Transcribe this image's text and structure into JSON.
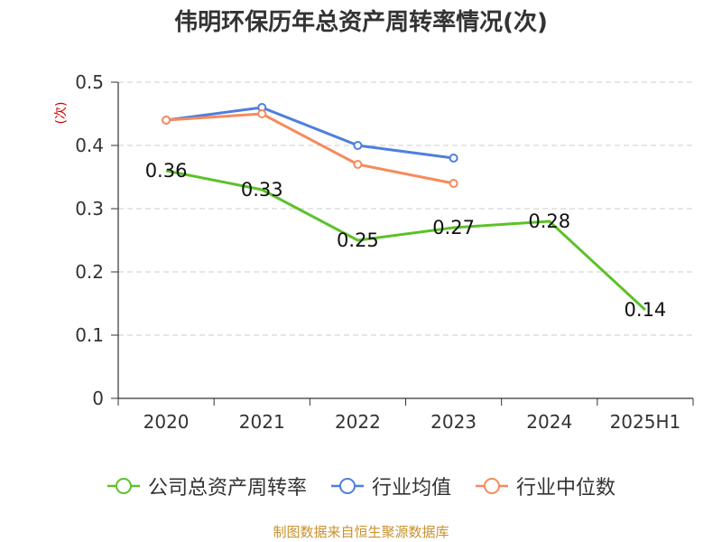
{
  "chart_data": {
    "type": "line",
    "title": "伟明环保历年总资产周转率情况(次)",
    "ylabel": "(次)",
    "categories": [
      "2020",
      "2021",
      "2022",
      "2023",
      "2024",
      "2025H1"
    ],
    "y_ticks": [
      "0",
      "0.1",
      "0.2",
      "0.3",
      "0.4",
      "0.5"
    ],
    "ylim": [
      0,
      0.5
    ],
    "grid": "horizontal dashed",
    "legend_position": "bottom",
    "series": [
      {
        "name": "公司总资产周转率",
        "color": "#5dc12a",
        "values": [
          0.36,
          0.33,
          0.25,
          0.27,
          0.28,
          0.14
        ],
        "labels": [
          "0.36",
          "0.33",
          "0.25",
          "0.27",
          "0.28",
          "0.14"
        ]
      },
      {
        "name": "行业均值",
        "color": "#4e7fdc",
        "values": [
          0.44,
          0.46,
          0.4,
          0.38,
          null,
          null
        ]
      },
      {
        "name": "行业中位数",
        "color": "#f68b5c",
        "values": [
          0.44,
          0.45,
          0.37,
          0.34,
          null,
          null
        ]
      }
    ]
  },
  "source": "制图数据来自恒生聚源数据库"
}
